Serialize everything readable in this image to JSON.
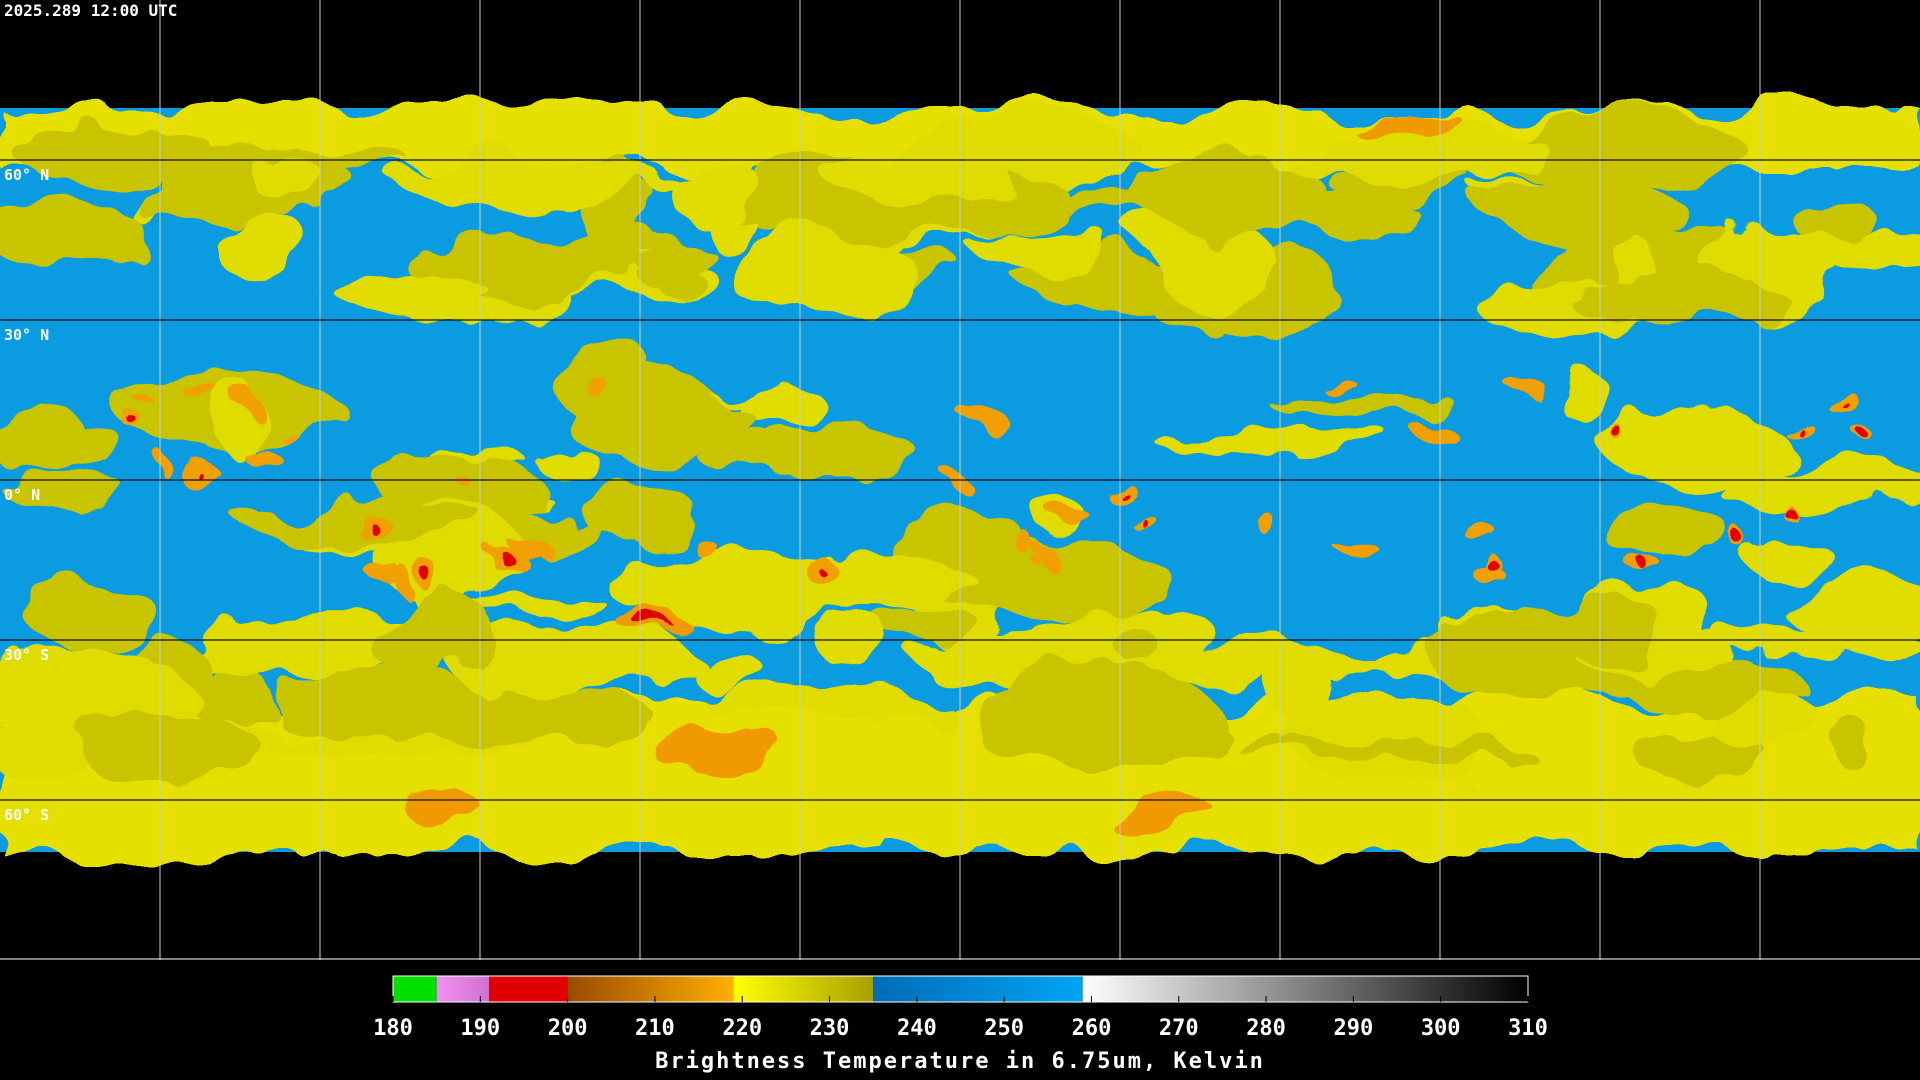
{
  "header": {
    "title": "2025.289 12:00 UTC"
  },
  "map": {
    "lat_labels": [
      "60° N",
      "30° N",
      "0° N",
      "30° S",
      "60° S"
    ]
  },
  "colorbar": {
    "xlim": [
      180,
      310
    ],
    "ticks": [
      180,
      190,
      200,
      210,
      220,
      230,
      240,
      250,
      260,
      270,
      280,
      290,
      300,
      310
    ],
    "label": "Brightness Temperature in 6.75um, Kelvin",
    "segments": [
      {
        "from": 180,
        "to": 185,
        "colors": [
          "#00e000",
          "#00e000"
        ]
      },
      {
        "from": 185,
        "to": 191,
        "colors": [
          "#f090f0",
          "#d070d0"
        ]
      },
      {
        "from": 191,
        "to": 200,
        "colors": [
          "#e00000",
          "#e00000"
        ]
      },
      {
        "from": 200,
        "to": 219,
        "colors": [
          "#9a4a00",
          "#ffb000"
        ]
      },
      {
        "from": 219,
        "to": 235,
        "colors": [
          "#ffff00",
          "#a8a000"
        ]
      },
      {
        "from": 235,
        "to": 259,
        "colors": [
          "#006cb8",
          "#00a4f4"
        ]
      },
      {
        "from": 259,
        "to": 310,
        "colors": [
          "#ffffff",
          "#000000"
        ]
      }
    ]
  }
}
